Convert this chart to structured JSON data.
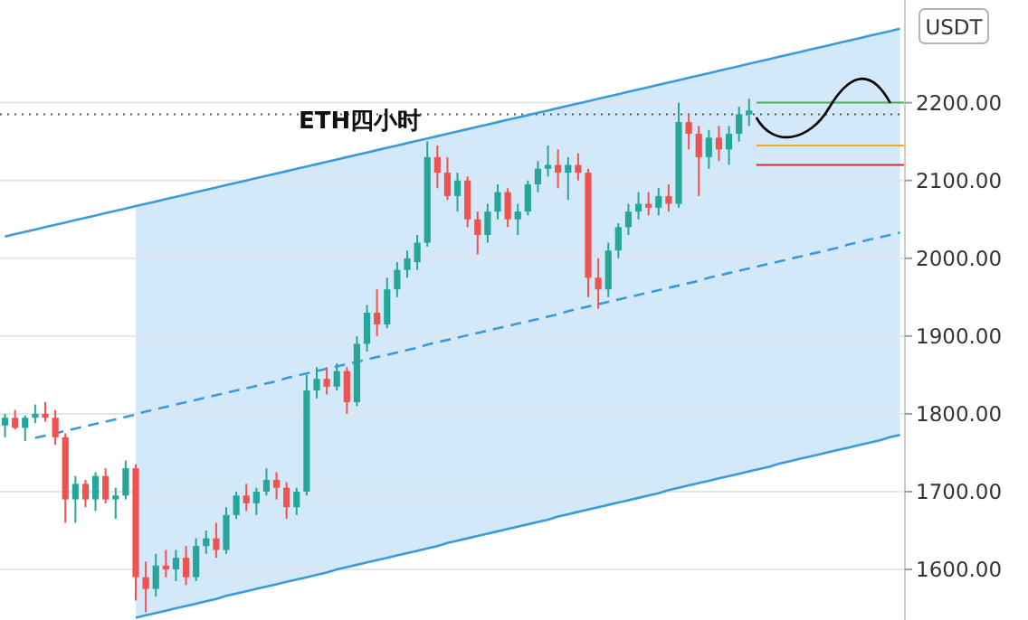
{
  "chart_data": {
    "type": "candlestick",
    "ylabel": "USDT",
    "annotations": [
      "ETH四小时"
    ],
    "categories": [
      null,
      null,
      null,
      null,
      null,
      null,
      null,
      null,
      null,
      null,
      null,
      null,
      null,
      null,
      null,
      null,
      null,
      null,
      null,
      null,
      null,
      null,
      null,
      null,
      null,
      null,
      null,
      null,
      null,
      null,
      null,
      null,
      null,
      null,
      null,
      null,
      null,
      null,
      null,
      null,
      null,
      null,
      null,
      null,
      null,
      null,
      null,
      null,
      null,
      null,
      null,
      null,
      null,
      null,
      null,
      null,
      null,
      null,
      null,
      null,
      null,
      null,
      null,
      null,
      null,
      null,
      null,
      null,
      null,
      null,
      null,
      null,
      null,
      null,
      null,
      null,
      null,
      null,
      null,
      null,
      null,
      null,
      null,
      null,
      null,
      null,
      null,
      null,
      null,
      null
    ],
    "ohlc": [
      [
        1785,
        1800,
        1770,
        1795
      ],
      [
        1795,
        1805,
        1780,
        1782
      ],
      [
        1782,
        1798,
        1765,
        1795
      ],
      [
        1795,
        1812,
        1788,
        1800
      ],
      [
        1800,
        1815,
        1790,
        1795
      ],
      [
        1795,
        1805,
        1760,
        1770
      ],
      [
        1770,
        1775,
        1660,
        1690
      ],
      [
        1690,
        1720,
        1660,
        1710
      ],
      [
        1710,
        1715,
        1680,
        1690
      ],
      [
        1690,
        1725,
        1675,
        1720
      ],
      [
        1720,
        1730,
        1685,
        1690
      ],
      [
        1690,
        1705,
        1665,
        1695
      ],
      [
        1695,
        1740,
        1690,
        1730
      ],
      [
        1730,
        1735,
        1560,
        1590
      ],
      [
        1590,
        1610,
        1545,
        1575
      ],
      [
        1575,
        1620,
        1565,
        1605
      ],
      [
        1605,
        1625,
        1590,
        1600
      ],
      [
        1600,
        1625,
        1585,
        1615
      ],
      [
        1615,
        1630,
        1580,
        1590
      ],
      [
        1590,
        1640,
        1585,
        1630
      ],
      [
        1630,
        1650,
        1620,
        1640
      ],
      [
        1640,
        1660,
        1615,
        1625
      ],
      [
        1625,
        1680,
        1620,
        1670
      ],
      [
        1670,
        1700,
        1665,
        1695
      ],
      [
        1695,
        1710,
        1675,
        1685
      ],
      [
        1685,
        1705,
        1670,
        1700
      ],
      [
        1700,
        1730,
        1695,
        1715
      ],
      [
        1715,
        1725,
        1690,
        1705
      ],
      [
        1705,
        1712,
        1665,
        1680
      ],
      [
        1680,
        1705,
        1670,
        1700
      ],
      [
        1700,
        1850,
        1695,
        1830
      ],
      [
        1830,
        1860,
        1820,
        1845
      ],
      [
        1845,
        1860,
        1825,
        1835
      ],
      [
        1835,
        1865,
        1830,
        1855
      ],
      [
        1855,
        1860,
        1800,
        1815
      ],
      [
        1815,
        1900,
        1810,
        1890
      ],
      [
        1890,
        1940,
        1880,
        1930
      ],
      [
        1930,
        1960,
        1900,
        1915
      ],
      [
        1915,
        1975,
        1910,
        1960
      ],
      [
        1960,
        1995,
        1950,
        1985
      ],
      [
        1985,
        2010,
        1975,
        2000
      ],
      [
        1995,
        2030,
        1985,
        2020
      ],
      [
        2020,
        2150,
        2015,
        2130
      ],
      [
        2130,
        2145,
        2090,
        2110
      ],
      [
        2110,
        2130,
        2075,
        2080
      ],
      [
        2080,
        2110,
        2060,
        2100
      ],
      [
        2100,
        2105,
        2040,
        2050
      ],
      [
        2050,
        2060,
        2005,
        2030
      ],
      [
        2030,
        2070,
        2020,
        2060
      ],
      [
        2060,
        2095,
        2050,
        2085
      ],
      [
        2085,
        2090,
        2040,
        2050
      ],
      [
        2050,
        2070,
        2030,
        2060
      ],
      [
        2060,
        2100,
        2055,
        2095
      ],
      [
        2095,
        2125,
        2085,
        2115
      ],
      [
        2115,
        2145,
        2105,
        2120
      ],
      [
        2120,
        2140,
        2090,
        2110
      ],
      [
        2110,
        2130,
        2075,
        2120
      ],
      [
        2120,
        2135,
        2100,
        2110
      ],
      [
        2110,
        2115,
        1950,
        1975
      ],
      [
        1975,
        2000,
        1935,
        1960
      ],
      [
        1960,
        2020,
        1950,
        2010
      ],
      [
        2010,
        2045,
        2000,
        2040
      ],
      [
        2040,
        2070,
        2030,
        2060
      ],
      [
        2060,
        2085,
        2050,
        2070
      ],
      [
        2070,
        2085,
        2055,
        2065
      ],
      [
        2065,
        2090,
        2055,
        2080
      ],
      [
        2080,
        2095,
        2060,
        2070
      ],
      [
        2070,
        2200,
        2065,
        2175
      ],
      [
        2175,
        2185,
        2140,
        2160
      ],
      [
        2160,
        2170,
        2080,
        2130
      ],
      [
        2130,
        2165,
        2115,
        2155
      ],
      [
        2155,
        2170,
        2125,
        2140
      ],
      [
        2140,
        2170,
        2120,
        2160
      ],
      [
        2160,
        2195,
        2150,
        2185
      ],
      [
        2185,
        2205,
        2170,
        2190
      ],
      null,
      null,
      null,
      null,
      null,
      null,
      null,
      null,
      null,
      null,
      null,
      null,
      null,
      null,
      null
    ],
    "series": [
      {
        "type": "line",
        "color": "#3a9bd9",
        "line_style": "dashed",
        "values": [
          null,
          null,
          null,
          1769,
          1772,
          1775,
          1778,
          1781,
          1784,
          1787,
          1790,
          1793,
          1796,
          1799,
          1803,
          1806,
          1809,
          1812,
          1815,
          1818,
          1821,
          1824,
          1827,
          1830,
          1833,
          1836,
          1839,
          1842,
          1846,
          1849,
          1852,
          1855,
          1858,
          1861,
          1864,
          1867,
          1870,
          1873,
          1876,
          1879,
          1882,
          1885,
          1889,
          1892,
          1895,
          1898,
          1901,
          1904,
          1907,
          1910,
          1913,
          1916,
          1919,
          1922,
          1925,
          1928,
          1932,
          1935,
          1938,
          1941,
          1944,
          1947,
          1950,
          1953,
          1956,
          1959,
          1962,
          1965,
          1968,
          1971,
          1975,
          1978,
          1981,
          1984,
          1987,
          1990,
          1993,
          1996,
          1999,
          2002,
          2005,
          2008,
          2011,
          2014,
          2018,
          2021,
          2024,
          2027,
          2030,
          2033
        ],
        "lower": [
          null,
          null,
          null,
          null,
          null,
          null,
          null,
          null,
          null,
          null,
          null,
          null,
          null,
          1538,
          1541,
          1544,
          1547,
          1550,
          1553,
          1556,
          1559,
          1562,
          1566,
          1569,
          1572,
          1575,
          1578,
          1581,
          1584,
          1587,
          1590,
          1593,
          1596,
          1600,
          1603,
          1606,
          1609,
          1612,
          1615,
          1618,
          1621,
          1624,
          1627,
          1630,
          1634,
          1637,
          1640,
          1643,
          1646,
          1649,
          1652,
          1655,
          1658,
          1661,
          1664,
          1668,
          1671,
          1674,
          1677,
          1680,
          1683,
          1686,
          1689,
          1692,
          1695,
          1698,
          1702,
          1705,
          1708,
          1711,
          1714,
          1717,
          1720,
          1723,
          1726,
          1729,
          1732,
          1736,
          1739,
          1742,
          1745,
          1748,
          1751,
          1754,
          1757,
          1760,
          1763,
          1766,
          1770,
          1773
        ],
        "upper": [
          null,
          null,
          null,
          null,
          null,
          null,
          null,
          null,
          null,
          null,
          null,
          null,
          null,
          2067,
          2070,
          2073,
          2076,
          2079,
          2082,
          2085,
          2088,
          2091,
          2094,
          2097,
          2100,
          2103,
          2106,
          2109,
          2112,
          2115,
          2118,
          2121,
          2124,
          2127,
          2130,
          2133,
          2136,
          2139,
          2142,
          2145,
          2148,
          2151,
          2154,
          2157,
          2160,
          2163,
          2166,
          2169,
          2172,
          2175,
          2178,
          2181,
          2184,
          2187,
          2190,
          2193,
          2196,
          2199,
          2202,
          2205,
          2208,
          2211,
          2214,
          2217,
          2220,
          2223,
          2226,
          2229,
          2232,
          2235,
          2238,
          2241,
          2244,
          2247,
          2250,
          2253,
          2256,
          2259,
          2262,
          2265,
          2268,
          2271,
          2274,
          2277,
          2280,
          2283,
          2286,
          2289,
          2292,
          2295
        ]
      },
      {
        "type": "line",
        "color": "#3a9bd9",
        "line_style": "solid",
        "values": [
          2028,
          2031,
          2034,
          2037,
          2040,
          2043,
          2046,
          2049,
          2052,
          2055,
          2058,
          2061,
          2064,
          2067,
          2070,
          2073,
          2076,
          2079,
          2082,
          2085,
          2088,
          2091,
          2094,
          2097,
          2100,
          2103,
          2106,
          2109,
          2112,
          2115,
          2118,
          2121,
          2124,
          2127,
          2130,
          2133,
          2136,
          2139,
          2142,
          2145,
          2148,
          2151,
          2154,
          2157,
          2160,
          2163,
          2166,
          2169,
          2172,
          2175,
          2178,
          2181,
          2184,
          2187,
          2190,
          2193,
          2196,
          2199,
          2202,
          2205,
          2208,
          2211,
          2214,
          2217,
          2220,
          2223,
          2226,
          2229,
          2232,
          2235,
          2238,
          2241,
          2244,
          2247,
          2250,
          2253,
          2256,
          2259,
          2262,
          2265,
          2268,
          2271,
          2274,
          2277,
          2280,
          2283,
          2286,
          2289,
          2292,
          2295
        ]
      },
      {
        "type": "line",
        "color": "#3a9bd9",
        "line_style": "solid",
        "values": [
          null,
          null,
          null,
          null,
          null,
          null,
          null,
          null,
          null,
          null,
          null,
          null,
          null,
          1538,
          1541,
          1544,
          1547,
          1550,
          1553,
          1556,
          1559,
          1562,
          1566,
          1569,
          1572,
          1575,
          1578,
          1581,
          1584,
          1587,
          1590,
          1593,
          1596,
          1600,
          1603,
          1606,
          1609,
          1612,
          1615,
          1618,
          1621,
          1624,
          1627,
          1630,
          1634,
          1637,
          1640,
          1643,
          1646,
          1649,
          1652,
          1655,
          1658,
          1661,
          1664,
          1668,
          1671,
          1674,
          1677,
          1680,
          1683,
          1686,
          1689,
          1692,
          1695,
          1698,
          1702,
          1705,
          1708,
          1711,
          1714,
          1717,
          1720,
          1723,
          1726,
          1729,
          1732,
          1736,
          1739,
          1742,
          1745,
          1748,
          1751,
          1754,
          1757,
          1760,
          1763,
          1766,
          1770,
          1773
        ]
      }
    ],
    "ref_lines": [
      {
        "axis": "y",
        "value": 2185,
        "color": "#555555",
        "line_style": "dotted"
      },
      {
        "axis": "y",
        "value": 2200,
        "color": "#4caf50",
        "line_style": "solid"
      },
      {
        "axis": "y",
        "value": 2145,
        "color": "#f5a623",
        "line_style": "solid"
      },
      {
        "axis": "y",
        "value": 2120,
        "color": "#d32f2f",
        "line_style": "solid"
      }
    ],
    "ylim": [
      1535,
      2332
    ],
    "yticks": [
      {
        "value": 1600,
        "label": "1600.00"
      },
      {
        "value": 1700,
        "label": "1700.00"
      },
      {
        "value": 1800,
        "label": "1800.00"
      },
      {
        "value": 1900,
        "label": "1900.00"
      },
      {
        "value": 2000,
        "label": "2000.00"
      },
      {
        "value": 2100,
        "label": "2100.00"
      },
      {
        "value": 2200,
        "label": "2200.00"
      }
    ],
    "grid": "y",
    "tick_labels": "y"
  }
}
